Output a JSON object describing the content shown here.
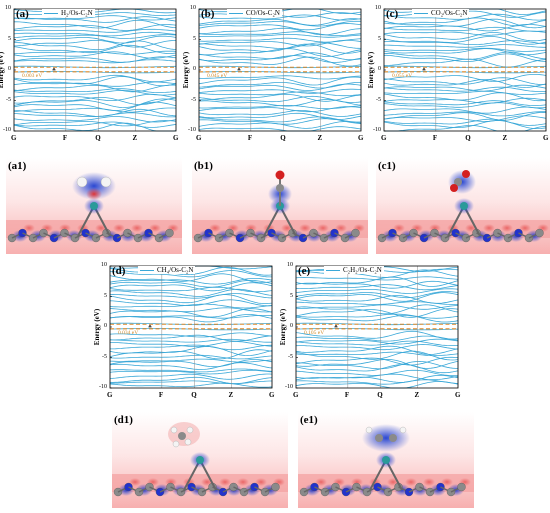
{
  "band_panels": [
    {
      "id": "a",
      "label": "(a)",
      "legend": "H₂/Os-C₂N",
      "gap": "0.003 eV"
    },
    {
      "id": "b",
      "label": "(b)",
      "legend": "CO/Os-C₂N",
      "gap": "0.045 eV"
    },
    {
      "id": "c",
      "label": "(c)",
      "legend": "CO₂/Os-C₂N",
      "gap": "0.055 eV"
    },
    {
      "id": "d",
      "label": "(d)",
      "legend": "CH₄/Os-C₂N",
      "gap": "0.034 eV"
    },
    {
      "id": "e",
      "label": "(e)",
      "legend": "C₂H₂/Os-C₂N",
      "gap": "0.105 eV"
    }
  ],
  "band_axis": {
    "ylabel": "Energy (eV)",
    "yticks": [
      "10",
      "5",
      "0",
      "-5",
      "-10"
    ],
    "xticks": [
      "G",
      "F",
      "Q",
      "Z",
      "G"
    ]
  },
  "charge_panels": [
    {
      "id": "a1",
      "label": "(a1)",
      "adsorbate": "H2"
    },
    {
      "id": "b1",
      "label": "(b1)",
      "adsorbate": "CO"
    },
    {
      "id": "c1",
      "label": "(c1)",
      "adsorbate": "CO2"
    },
    {
      "id": "d1",
      "label": "(d1)",
      "adsorbate": "CH4"
    },
    {
      "id": "e1",
      "label": "(e1)",
      "adsorbate": "C2H2"
    }
  ],
  "colors": {
    "band": "#3aa8d8",
    "fermi": "#e08a2a",
    "accumulation": "#e03030",
    "depletion": "#1f3fd0",
    "carbon": "#8a8a8a",
    "nitrogen": "#2233cc",
    "osmium": "#2a9a9a",
    "oxygen": "#d42020",
    "hydrogen": "#f4f4f4"
  }
}
